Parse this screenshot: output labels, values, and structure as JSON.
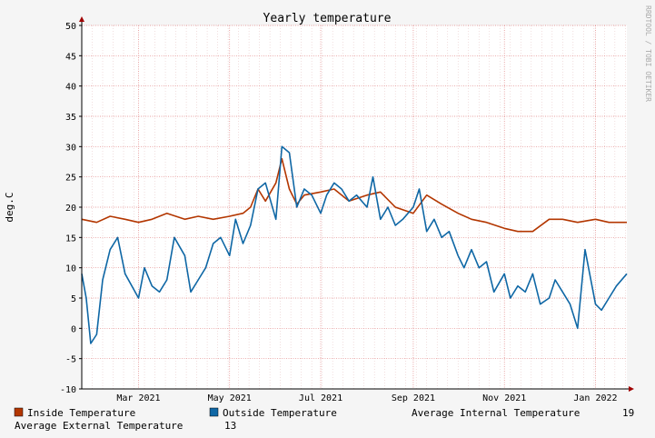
{
  "chart_data": {
    "type": "line",
    "title": "Yearly temperature",
    "ylabel": "deg.C",
    "xlabel": "",
    "watermark": "RRDTOOL / TOBI OETIKER",
    "ylim": [
      -10,
      50
    ],
    "yticks": [
      -10,
      -5,
      0,
      5,
      10,
      15,
      20,
      25,
      30,
      35,
      40,
      45,
      50
    ],
    "xlim": [
      "2021-01-22",
      "2022-01-22"
    ],
    "xticks": [
      {
        "label": "Mar 2021",
        "date": "2021-03-01"
      },
      {
        "label": "May 2021",
        "date": "2021-05-01"
      },
      {
        "label": "Jul 2021",
        "date": "2021-07-01"
      },
      {
        "label": "Sep 2021",
        "date": "2021-09-01"
      },
      {
        "label": "Nov 2021",
        "date": "2021-11-01"
      },
      {
        "label": "Jan 2022",
        "date": "2022-01-01"
      }
    ],
    "grid": true,
    "legend_placement": "bottom",
    "series": [
      {
        "name": "Inside Temperature",
        "color": "#b33600",
        "x": [
          "2021-01-22",
          "2021-02-01",
          "2021-02-10",
          "2021-02-20",
          "2021-03-01",
          "2021-03-10",
          "2021-03-20",
          "2021-04-01",
          "2021-04-10",
          "2021-04-20",
          "2021-05-01",
          "2021-05-10",
          "2021-05-15",
          "2021-05-20",
          "2021-05-25",
          "2021-06-01",
          "2021-06-05",
          "2021-06-10",
          "2021-06-15",
          "2021-06-20",
          "2021-07-01",
          "2021-07-10",
          "2021-07-20",
          "2021-08-01",
          "2021-08-10",
          "2021-08-20",
          "2021-09-01",
          "2021-09-10",
          "2021-09-20",
          "2021-10-01",
          "2021-10-10",
          "2021-10-20",
          "2021-11-01",
          "2021-11-10",
          "2021-11-20",
          "2021-12-01",
          "2021-12-10",
          "2021-12-20",
          "2022-01-01",
          "2022-01-10",
          "2022-01-22"
        ],
        "values": [
          18,
          17.5,
          18.5,
          18,
          17.5,
          18,
          19,
          18,
          18.5,
          18,
          18.5,
          19,
          20,
          23,
          21,
          24,
          28,
          23,
          20.5,
          22,
          22.5,
          23,
          21,
          22,
          22.5,
          20,
          19,
          22,
          20.5,
          19,
          18,
          17.5,
          16.5,
          16,
          16,
          18,
          18,
          17.5,
          18,
          17.5,
          17.5
        ]
      },
      {
        "name": "Outside Temperature",
        "color": "#0f67a5",
        "x": [
          "2021-01-22",
          "2021-01-25",
          "2021-01-28",
          "2021-02-01",
          "2021-02-05",
          "2021-02-10",
          "2021-02-15",
          "2021-02-20",
          "2021-03-01",
          "2021-03-05",
          "2021-03-10",
          "2021-03-15",
          "2021-03-20",
          "2021-03-25",
          "2021-04-01",
          "2021-04-05",
          "2021-04-10",
          "2021-04-15",
          "2021-04-20",
          "2021-04-25",
          "2021-05-01",
          "2021-05-05",
          "2021-05-10",
          "2021-05-15",
          "2021-05-20",
          "2021-05-25",
          "2021-06-01",
          "2021-06-05",
          "2021-06-10",
          "2021-06-15",
          "2021-06-20",
          "2021-06-25",
          "2021-07-01",
          "2021-07-05",
          "2021-07-10",
          "2021-07-15",
          "2021-07-20",
          "2021-07-25",
          "2021-08-01",
          "2021-08-05",
          "2021-08-10",
          "2021-08-15",
          "2021-08-20",
          "2021-08-25",
          "2021-09-01",
          "2021-09-05",
          "2021-09-10",
          "2021-09-15",
          "2021-09-20",
          "2021-09-25",
          "2021-10-01",
          "2021-10-05",
          "2021-10-10",
          "2021-10-15",
          "2021-10-20",
          "2021-10-25",
          "2021-11-01",
          "2021-11-05",
          "2021-11-10",
          "2021-11-15",
          "2021-11-20",
          "2021-11-25",
          "2021-12-01",
          "2021-12-05",
          "2021-12-10",
          "2021-12-15",
          "2021-12-20",
          "2021-12-25",
          "2022-01-01",
          "2022-01-05",
          "2022-01-10",
          "2022-01-15",
          "2022-01-22"
        ],
        "values": [
          9,
          5,
          -2.5,
          -1,
          8,
          13,
          15,
          9,
          5,
          10,
          7,
          6,
          8,
          15,
          12,
          6,
          8,
          10,
          14,
          15,
          12,
          18,
          14,
          17,
          23,
          24,
          18,
          30,
          29,
          20,
          23,
          22,
          19,
          22,
          24,
          23,
          21,
          22,
          20,
          25,
          18,
          20,
          17,
          18,
          20,
          23,
          16,
          18,
          15,
          16,
          12,
          10,
          13,
          10,
          11,
          6,
          9,
          5,
          7,
          6,
          9,
          4,
          5,
          8,
          6,
          4,
          0,
          13,
          4,
          3,
          5,
          7,
          9
        ]
      }
    ],
    "legend": {
      "inside_label": "Inside Temperature",
      "outside_label": "Outside Temperature",
      "avg_internal_label": "Average Internal Temperature",
      "avg_internal_value": "19",
      "avg_external_label": "Average External Temperature",
      "avg_external_value": "13"
    }
  }
}
